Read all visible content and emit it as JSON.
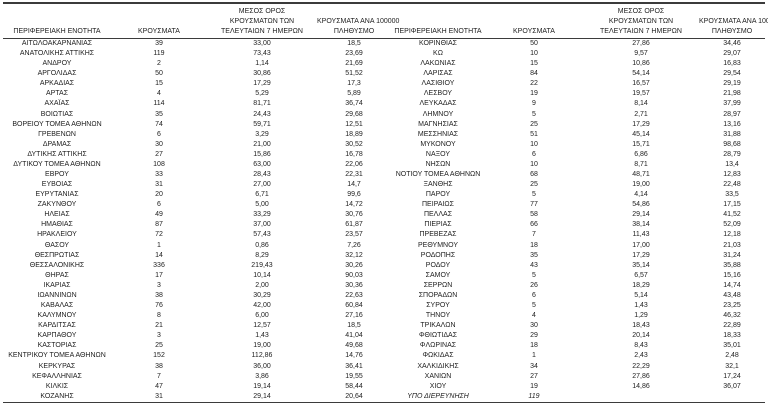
{
  "colors": {
    "border": "#3b3b3b",
    "text": "#1e1e1e",
    "background": "#ffffff"
  },
  "table": {
    "headers": {
      "region": "ΠΕΡΙΦΕΡΕΙΑΚΗ ΕΝΟΤΗΤΑ",
      "cases": "ΚΡΟΥΣΜΑΤΑ",
      "avg7_lines": [
        "ΜΕΣΟΣ ΟΡΟΣ",
        "ΚΡΟΥΣΜΑΤΩΝ ΤΩΝ",
        "ΤΕΛΕΥΤΑΙΩΝ 7 ΗΜΕΡΩΝ"
      ],
      "per100k_lines": [
        "ΚΡΟΥΣΜΑΤΑ ΑΝΑ 100000",
        "ΠΛΗΘΥΣΜΟ"
      ]
    },
    "right_last_row_italic": true,
    "left_rows": [
      [
        "ΑΙΤΩΛΟΑΚΑΡΝΑΝΙΑΣ",
        "39",
        "33,00",
        "18,5"
      ],
      [
        "ΑΝΑΤΟΛΙΚΗΣ ΑΤΤΙΚΗΣ",
        "119",
        "73,43",
        "23,69"
      ],
      [
        "ΑΝΔΡΟΥ",
        "2",
        "1,14",
        "21,69"
      ],
      [
        "ΑΡΓΟΛΙΔΑΣ",
        "50",
        "30,86",
        "51,52"
      ],
      [
        "ΑΡΚΑΔΙΑΣ",
        "15",
        "17,29",
        "17,3"
      ],
      [
        "ΑΡΤΑΣ",
        "4",
        "5,29",
        "5,89"
      ],
      [
        "ΑΧΑΪΑΣ",
        "114",
        "81,71",
        "36,74"
      ],
      [
        "ΒΟΙΩΤΙΑΣ",
        "35",
        "24,43",
        "29,68"
      ],
      [
        "ΒΟΡΕΙΟΥ ΤΟΜΕΑ ΑΘΗΝΩΝ",
        "74",
        "59,71",
        "12,51"
      ],
      [
        "ΓΡΕΒΕΝΩΝ",
        "6",
        "3,29",
        "18,89"
      ],
      [
        "ΔΡΑΜΑΣ",
        "30",
        "21,00",
        "30,52"
      ],
      [
        "ΔΥΤΙΚΗΣ ΑΤΤΙΚΗΣ",
        "27",
        "15,86",
        "16,78"
      ],
      [
        "ΔΥΤΙΚΟΥ ΤΟΜΕΑ ΑΘΗΝΩΝ",
        "108",
        "63,00",
        "22,06"
      ],
      [
        "ΕΒΡΟΥ",
        "33",
        "28,43",
        "22,31"
      ],
      [
        "ΕΥΒΟΙΑΣ",
        "31",
        "27,00",
        "14,7"
      ],
      [
        "ΕΥΡΥΤΑΝΙΑΣ",
        "20",
        "6,71",
        "99,6"
      ],
      [
        "ΖΑΚΥΝΘΟΥ",
        "6",
        "5,00",
        "14,72"
      ],
      [
        "ΗΛΕΙΑΣ",
        "49",
        "33,29",
        "30,76"
      ],
      [
        "ΗΜΑΘΙΑΣ",
        "87",
        "37,00",
        "61,87"
      ],
      [
        "ΗΡΑΚΛΕΙΟΥ",
        "72",
        "57,43",
        "23,57"
      ],
      [
        "ΘΑΣΟΥ",
        "1",
        "0,86",
        "7,26"
      ],
      [
        "ΘΕΣΠΡΩΤΙΑΣ",
        "14",
        "8,29",
        "32,12"
      ],
      [
        "ΘΕΣΣΑΛΟΝΙΚΗΣ",
        "336",
        "219,43",
        "30,26"
      ],
      [
        "ΘΗΡΑΣ",
        "17",
        "10,14",
        "90,03"
      ],
      [
        "ΙΚΑΡΙΑΣ",
        "3",
        "2,00",
        "30,36"
      ],
      [
        "ΙΩΑΝΝΙΝΩΝ",
        "38",
        "30,29",
        "22,63"
      ],
      [
        "ΚΑΒΑΛΑΣ",
        "76",
        "42,00",
        "60,84"
      ],
      [
        "ΚΑΛΥΜΝΟΥ",
        "8",
        "6,00",
        "27,16"
      ],
      [
        "ΚΑΡΔΙΤΣΑΣ",
        "21",
        "12,57",
        "18,5"
      ],
      [
        "ΚΑΡΠΑΘΟΥ",
        "3",
        "1,43",
        "41,04"
      ],
      [
        "ΚΑΣΤΟΡΙΑΣ",
        "25",
        "19,00",
        "49,68"
      ],
      [
        "ΚΕΝΤΡΙΚΟΥ ΤΟΜΕΑ ΑΘΗΝΩΝ",
        "152",
        "112,86",
        "14,76"
      ],
      [
        "ΚΕΡΚΥΡΑΣ",
        "38",
        "36,00",
        "36,41"
      ],
      [
        "ΚΕΦΑΛΛΗΝΙΑΣ",
        "7",
        "3,86",
        "19,55"
      ],
      [
        "ΚΙΛΚΙΣ",
        "47",
        "19,14",
        "58,44"
      ],
      [
        "ΚΟΖΑΝΗΣ",
        "31",
        "29,14",
        "20,64"
      ]
    ],
    "right_rows": [
      [
        "ΚΟΡΙΝΘΙΑΣ",
        "50",
        "27,86",
        "34,46"
      ],
      [
        "ΚΩ",
        "10",
        "9,57",
        "29,07"
      ],
      [
        "ΛΑΚΩΝΙΑΣ",
        "15",
        "10,86",
        "16,83"
      ],
      [
        "ΛΑΡΙΣΑΣ",
        "84",
        "54,14",
        "29,54"
      ],
      [
        "ΛΑΣΙΘΙΟΥ",
        "22",
        "16,57",
        "29,19"
      ],
      [
        "ΛΕΣΒΟΥ",
        "19",
        "19,57",
        "21,98"
      ],
      [
        "ΛΕΥΚΑΔΑΣ",
        "9",
        "8,14",
        "37,99"
      ],
      [
        "ΛΗΜΝΟΥ",
        "5",
        "2,71",
        "28,97"
      ],
      [
        "ΜΑΓΝΗΣΙΑΣ",
        "25",
        "17,29",
        "13,16"
      ],
      [
        "ΜΕΣΣΗΝΙΑΣ",
        "51",
        "45,14",
        "31,88"
      ],
      [
        "ΜΥΚΟΝΟΥ",
        "10",
        "15,71",
        "98,68"
      ],
      [
        "ΝΑΞΟΥ",
        "6",
        "6,86",
        "28,79"
      ],
      [
        "ΝΗΣΩΝ",
        "10",
        "8,71",
        "13,4"
      ],
      [
        "ΝΟΤΙΟΥ ΤΟΜΕΑ ΑΘΗΝΩΝ",
        "68",
        "48,71",
        "12,83"
      ],
      [
        "ΞΑΝΘΗΣ",
        "25",
        "19,00",
        "22,48"
      ],
      [
        "ΠΑΡΟΥ",
        "5",
        "4,14",
        "33,5"
      ],
      [
        "ΠΕΙΡΑΙΩΣ",
        "77",
        "54,86",
        "17,15"
      ],
      [
        "ΠΕΛΛΑΣ",
        "58",
        "29,14",
        "41,52"
      ],
      [
        "ΠΙΕΡΙΑΣ",
        "66",
        "38,14",
        "52,09"
      ],
      [
        "ΠΡΕΒΕΖΑΣ",
        "7",
        "11,43",
        "12,18"
      ],
      [
        "ΡΕΘΥΜΝΟΥ",
        "18",
        "17,00",
        "21,03"
      ],
      [
        "ΡΟΔΟΠΗΣ",
        "35",
        "17,29",
        "31,24"
      ],
      [
        "ΡΟΔΟΥ",
        "43",
        "35,14",
        "35,88"
      ],
      [
        "ΣΑΜΟΥ",
        "5",
        "6,57",
        "15,16"
      ],
      [
        "ΣΕΡΡΩΝ",
        "26",
        "18,29",
        "14,74"
      ],
      [
        "ΣΠΟΡΑΔΩΝ",
        "6",
        "5,14",
        "43,48"
      ],
      [
        "ΣΥΡΟΥ",
        "5",
        "1,43",
        "23,25"
      ],
      [
        "ΤΗΝΟΥ",
        "4",
        "1,29",
        "46,32"
      ],
      [
        "ΤΡΙΚΑΛΩΝ",
        "30",
        "18,43",
        "22,89"
      ],
      [
        "ΦΘΙΩΤΙΔΑΣ",
        "29",
        "20,14",
        "18,33"
      ],
      [
        "ΦΛΩΡΙΝΑΣ",
        "18",
        "8,43",
        "35,01"
      ],
      [
        "ΦΩΚΙΔΑΣ",
        "1",
        "2,43",
        "2,48"
      ],
      [
        "ΧΑΛΚΙΔΙΚΗΣ",
        "34",
        "22,29",
        "32,1"
      ],
      [
        "ΧΑΝΙΩΝ",
        "27",
        "27,86",
        "17,24"
      ],
      [
        "ΧΙΟΥ",
        "19",
        "14,86",
        "36,07"
      ],
      [
        "ΥΠΟ ΔΙΕΡΕΥΝΗΣΗ",
        "119",
        "",
        ""
      ]
    ]
  }
}
